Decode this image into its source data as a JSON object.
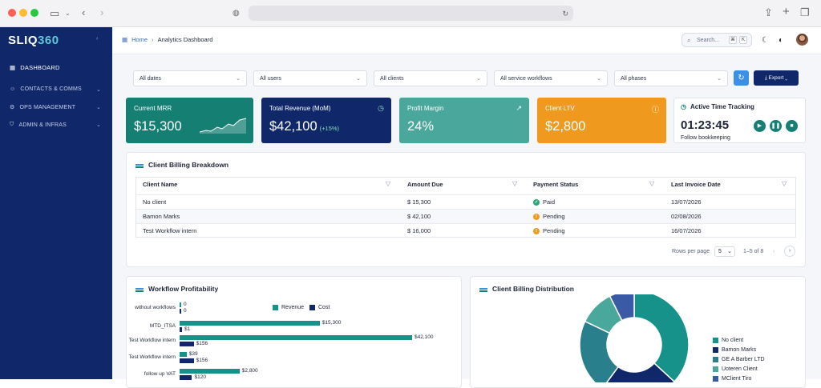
{
  "app": {
    "logo_main": "SLIQ",
    "logo_accent": "360"
  },
  "sidebar": {
    "items": [
      {
        "label": "DASHBOARD",
        "icon": "grid-icon"
      },
      {
        "label": "CONTACTS & COMMS",
        "icon": "users-icon"
      },
      {
        "label": "OPS MANAGEMENT",
        "icon": "settings-icon"
      },
      {
        "label": "ADMIN & INFRAS",
        "icon": "shield-icon"
      }
    ]
  },
  "breadcrumb": {
    "home": "Home",
    "current": "Analytics Dashboard"
  },
  "search": {
    "placeholder": "Search...",
    "kbd1": "⌘",
    "kbd2": "K"
  },
  "filters": [
    "All dates",
    "All users",
    "All clients",
    "All service workflows",
    "All phases"
  ],
  "export_label": "Export",
  "kpis": [
    {
      "title": "Current MRR",
      "value": "$15,300",
      "color": "#167f73"
    },
    {
      "title": "Total Revenue (MoM)",
      "value": "$42,100",
      "sub": "(+15%)",
      "color": "#10286a"
    },
    {
      "title": "Profit Margin",
      "value": "24%",
      "color": "#4aa79b"
    },
    {
      "title": "Client LTV",
      "value": "$2,800",
      "color": "#ef9a1e"
    }
  ],
  "timer": {
    "title": "Active Time Tracking",
    "time": "01:23:45",
    "task": "Follow bookkeeping"
  },
  "billing": {
    "title": "Client Billing Breakdown",
    "columns": [
      "Client Name",
      "Amount Due",
      "Payment Status",
      "Last Invoice Date"
    ],
    "rows": [
      {
        "client": "No client",
        "amount": "$ 15,300",
        "status": "Paid",
        "date": "13/07/2026"
      },
      {
        "client": "Bamon Marks",
        "amount": "$ 42,100",
        "status": "Pending",
        "date": "02/08/2026"
      },
      {
        "client": "Test Workflow intern",
        "amount": "$ 16,000",
        "status": "Pending",
        "date": "16/07/2026"
      }
    ],
    "rows_per_page_label": "Rows per page",
    "rows_per_page": "5",
    "range": "1–5 of 8"
  },
  "profitability": {
    "title": "Workflow Profitability",
    "legend": [
      "Revenue",
      "Cost"
    ],
    "colors": {
      "revenue": "#16928a",
      "cost": "#10286a"
    }
  },
  "distribution": {
    "title": "Client Billing Distribution",
    "legend": [
      "No client",
      "Bamon Marks",
      "GE A Barber LTD",
      "Uoteren Client",
      "MClient Tiro"
    ]
  },
  "chart_data": [
    {
      "type": "bar",
      "title": "Workflow Profitability",
      "orientation": "horizontal",
      "categories": [
        "without workflows",
        "MTD_ITSA",
        "Test Workflow intern",
        "Test Workflow intern",
        "follow up VAT"
      ],
      "series": [
        {
          "name": "Revenue",
          "values": [
            0,
            15300,
            42100,
            39,
            2800
          ],
          "labels": [
            "0",
            "$15,300",
            "$42,100",
            "$39",
            "$2,800"
          ]
        },
        {
          "name": "Cost",
          "values": [
            0,
            1,
            156,
            156,
            120
          ],
          "labels": [
            "0",
            "$1",
            "$156",
            "$156",
            "$120"
          ]
        }
      ],
      "legend": "top"
    },
    {
      "type": "pie",
      "title": "Client Billing Distribution",
      "categories": [
        "No client",
        "Bamon Marks",
        "GE A Barber LTD",
        "Uoteren Client",
        "MClient Tiro"
      ],
      "values": [
        35,
        22,
        21,
        10,
        7
      ],
      "colors": [
        "#16928a",
        "#10286a",
        "#2a7f8c",
        "#4aa79b",
        "#3b5aa6"
      ],
      "legend": "right"
    }
  ]
}
